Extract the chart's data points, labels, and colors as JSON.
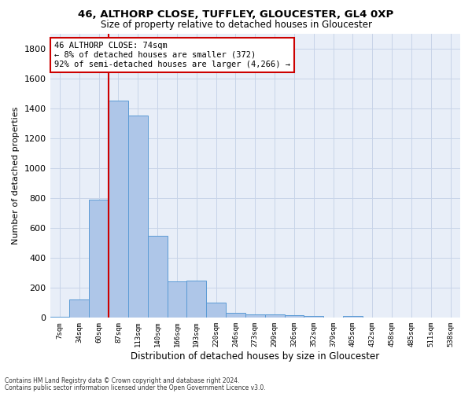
{
  "title1": "46, ALTHORP CLOSE, TUFFLEY, GLOUCESTER, GL4 0XP",
  "title2": "Size of property relative to detached houses in Gloucester",
  "xlabel": "Distribution of detached houses by size in Gloucester",
  "ylabel": "Number of detached properties",
  "categories": [
    "7sqm",
    "34sqm",
    "60sqm",
    "87sqm",
    "113sqm",
    "140sqm",
    "166sqm",
    "193sqm",
    "220sqm",
    "246sqm",
    "273sqm",
    "299sqm",
    "326sqm",
    "352sqm",
    "379sqm",
    "405sqm",
    "432sqm",
    "458sqm",
    "485sqm",
    "511sqm",
    "538sqm"
  ],
  "values": [
    5,
    120,
    790,
    1450,
    1350,
    550,
    245,
    250,
    100,
    35,
    25,
    25,
    15,
    10,
    0,
    10,
    0,
    0,
    0,
    0,
    0
  ],
  "bar_color": "#aec6e8",
  "bar_edge_color": "#5b9bd5",
  "grid_color": "#c8d4e8",
  "background_color": "#e8eef8",
  "vline_x": 2.5,
  "vline_color": "#cc0000",
  "annotation_text": "46 ALTHORP CLOSE: 74sqm\n← 8% of detached houses are smaller (372)\n92% of semi-detached houses are larger (4,266) →",
  "annotation_box_color": "#ffffff",
  "annotation_box_edge_color": "#cc0000",
  "footer1": "Contains HM Land Registry data © Crown copyright and database right 2024.",
  "footer2": "Contains public sector information licensed under the Open Government Licence v3.0.",
  "ylim": [
    0,
    1900
  ],
  "yticks": [
    0,
    200,
    400,
    600,
    800,
    1000,
    1200,
    1400,
    1600,
    1800
  ]
}
